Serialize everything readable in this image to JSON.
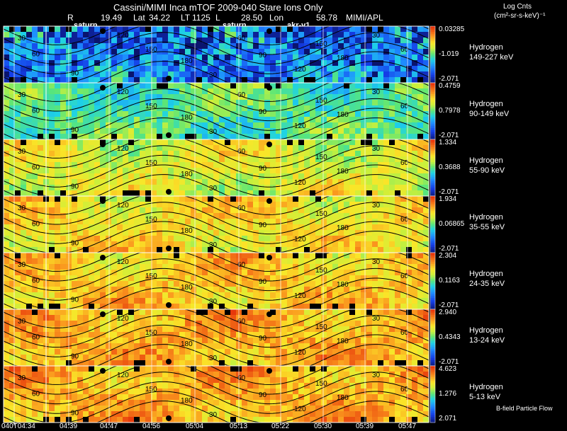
{
  "header": {
    "title": "Cassini/MIMI Inca mTOF  2009-040   Stare   Ions Only",
    "r_label": "R",
    "r_value": "19.49",
    "lat_label": "Lat",
    "lat_value": "34.22",
    "lt_label": "LT",
    "lt_value": "1125",
    "l_label": "L",
    "l_value": "28.50",
    "lon_label": "Lon",
    "lon_value": "58.78",
    "source": "MIMI/APL"
  },
  "colorbar_title_1": "Log Cnts",
  "colorbar_title_2": "(cm²-sr-s-keV)⁻¹",
  "annotations": {
    "saturn_1": "saturn",
    "saturn_2": "saturn",
    "akr": "akr-v1"
  },
  "footer_label": "B-field Particle Flow",
  "colors": {
    "dark_blue": "#0a1470",
    "blue": "#1e6cff",
    "cyan": "#20c8e8",
    "green": "#60e060",
    "yellow": "#f8f040",
    "orange": "#f89020",
    "red": "#e83010"
  },
  "chart_data": {
    "type": "heatmap",
    "title": "Cassini/MIMI Inca mTOF  2009-040   Stare   Ions Only",
    "x_ticks": [
      "04:34",
      "04:39",
      "04:47",
      "04:56",
      "05:04",
      "05:13",
      "05:22",
      "05:30",
      "05:39",
      "05:47"
    ],
    "x_date_prefix": "040T",
    "contour_labels": [
      "30",
      "60",
      "90",
      "120",
      "150",
      "180"
    ],
    "panels": [
      {
        "species": "Hydrogen",
        "energy": "149-227 keV",
        "cmax": "0.03285",
        "cmid": "-1.019",
        "cmin": "-2.071",
        "level": 0.3
      },
      {
        "species": "Hydrogen",
        "energy": "90-149 keV",
        "cmax": "0.4759",
        "cmid": "0.7978",
        "cmin": "-2.071",
        "level": 0.5
      },
      {
        "species": "Hydrogen",
        "energy": "55-90 keV",
        "cmax": "1.334",
        "cmid": "0.3688",
        "cmin": "-2.071",
        "level": 0.66
      },
      {
        "species": "Hydrogen",
        "energy": "35-55 keV",
        "cmax": "1.934",
        "cmid": "0.06865",
        "cmin": "-2.071",
        "level": 0.72
      },
      {
        "species": "Hydrogen",
        "energy": "24-35 keV",
        "cmax": "2.304",
        "cmid": "0.1163",
        "cmin": "-2.071",
        "level": 0.76
      },
      {
        "species": "Hydrogen",
        "energy": "13-24 keV",
        "cmax": "2.940",
        "cmid": "0.4343",
        "cmin": "-2.071",
        "level": 0.8
      },
      {
        "species": "Hydrogen",
        "energy": "5-13 keV",
        "cmax": "4.623",
        "cmid": "1.276",
        "cmin": "2.071",
        "level": 0.8
      }
    ]
  }
}
